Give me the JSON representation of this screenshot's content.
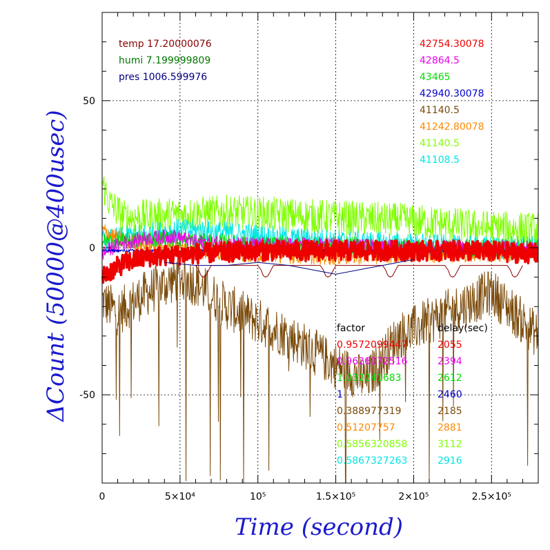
{
  "chart_data": {
    "type": "line",
    "title": "",
    "xlabel": "Time (second)",
    "ylabel": "ΔCount (50000@400usec)",
    "xlim": [
      0,
      280000
    ],
    "ylim": [
      -80,
      80
    ],
    "grid": true,
    "x_ticks": [
      {
        "value": 0,
        "label": "0"
      },
      {
        "value": 50000,
        "label": "5×10⁴"
      },
      {
        "value": 100000,
        "label": "10⁵"
      },
      {
        "value": 150000,
        "label": "1.5×10⁵"
      },
      {
        "value": 200000,
        "label": "2×10⁵"
      },
      {
        "value": 250000,
        "label": "2.5×10⁵"
      }
    ],
    "y_ticks": [
      {
        "value": 50,
        "label": "50"
      },
      {
        "value": 0,
        "label": "0"
      },
      {
        "value": -50,
        "label": "-50"
      }
    ],
    "env_legend": [
      {
        "text": "temp 17.20000076",
        "color": "#8b0000"
      },
      {
        "text": "humi 7.199999809",
        "color": "#007700"
      },
      {
        "text": "pres 1006.599976",
        "color": "#000080"
      }
    ],
    "series": [
      {
        "base": "42754.30078",
        "factor": "0.9572099447",
        "delay": "2055",
        "color": "#ee0000",
        "center": [
          [
            0,
            -10
          ],
          [
            5000,
            -8
          ],
          [
            15000,
            -5
          ],
          [
            30000,
            -3
          ],
          [
            60000,
            -2
          ],
          [
            100000,
            -1
          ],
          [
            150000,
            -1
          ],
          [
            200000,
            -1
          ],
          [
            240000,
            -1
          ],
          [
            280000,
            -2
          ]
        ],
        "spread": 3.5,
        "lw": 3.5
      },
      {
        "base": "42864.5",
        "factor": "0.9626072516",
        "delay": "2394",
        "color": "#ee00ee",
        "center": [
          [
            0,
            -2
          ],
          [
            10000,
            1
          ],
          [
            25000,
            3
          ],
          [
            45000,
            4
          ],
          [
            60000,
            2
          ],
          [
            100000,
            1
          ],
          [
            150000,
            1
          ],
          [
            200000,
            0
          ],
          [
            240000,
            0
          ],
          [
            280000,
            0
          ]
        ],
        "spread": 2.5,
        "lw": 1
      },
      {
        "base": "43465",
        "factor": "1.032241683",
        "delay": "2612",
        "color": "#00dd00",
        "center": [
          [
            0,
            2
          ],
          [
            10000,
            2
          ],
          [
            30000,
            3
          ],
          [
            50000,
            3
          ],
          [
            60000,
            2
          ],
          [
            100000,
            1
          ],
          [
            150000,
            1
          ],
          [
            200000,
            0
          ],
          [
            280000,
            0
          ]
        ],
        "spread": 3,
        "lw": 1
      },
      {
        "base": "42940.30078",
        "factor": "1",
        "delay": "2460",
        "color": "#0000cc",
        "center": [
          [
            0,
            -1
          ],
          [
            280000,
            -1
          ]
        ],
        "spread": 0.5,
        "lw": 1
      },
      {
        "base": "41140.5",
        "factor": "0.388977319",
        "delay": "2185",
        "color": "#7a4a0a",
        "center": [
          [
            0,
            -18
          ],
          [
            10000,
            -22
          ],
          [
            30000,
            -15
          ],
          [
            50000,
            -10
          ],
          [
            60000,
            -12
          ],
          [
            80000,
            -20
          ],
          [
            100000,
            -25
          ],
          [
            120000,
            -30
          ],
          [
            150000,
            -40
          ],
          [
            170000,
            -45
          ],
          [
            190000,
            -30
          ],
          [
            210000,
            -25
          ],
          [
            230000,
            -20
          ],
          [
            250000,
            -15
          ],
          [
            280000,
            -30
          ]
        ],
        "spread": 8,
        "lw": 1
      },
      {
        "base": "41242.80078",
        "factor": "0.51207757",
        "delay": "2881",
        "color": "#ff8800",
        "center": [
          [
            0,
            6
          ],
          [
            10000,
            3
          ],
          [
            30000,
            1
          ],
          [
            60000,
            -1
          ],
          [
            100000,
            -2
          ],
          [
            150000,
            -3
          ],
          [
            200000,
            -2
          ],
          [
            280000,
            -2
          ]
        ],
        "spread": 3,
        "lw": 1
      },
      {
        "base": "41140.5",
        "factor": "0.5856320858",
        "delay": "3112",
        "color": "#7fff00",
        "center": [
          [
            0,
            22
          ],
          [
            5000,
            15
          ],
          [
            15000,
            10
          ],
          [
            40000,
            11
          ],
          [
            80000,
            12
          ],
          [
            120000,
            11
          ],
          [
            160000,
            10
          ],
          [
            200000,
            9
          ],
          [
            240000,
            7
          ],
          [
            280000,
            6
          ]
        ],
        "spread": 6,
        "lw": 1
      },
      {
        "base": "41108.5",
        "factor": "0.5867327263",
        "delay": "2916",
        "color": "#00e5e5",
        "center": [
          [
            0,
            2
          ],
          [
            20000,
            4
          ],
          [
            50000,
            6
          ],
          [
            80000,
            5
          ],
          [
            120000,
            3
          ],
          [
            160000,
            2
          ],
          [
            200000,
            1
          ],
          [
            240000,
            0
          ],
          [
            280000,
            0
          ]
        ],
        "spread": 4,
        "lw": 1
      }
    ],
    "env_curves": [
      {
        "name": "temp",
        "color": "#8b0000",
        "points": [
          [
            60000,
            -6
          ],
          [
            62000,
            -7.5
          ],
          [
            63500,
            -9.5
          ],
          [
            65000,
            -10
          ],
          [
            66500,
            -9.5
          ],
          [
            68000,
            -8
          ],
          [
            70000,
            -6
          ],
          [
            100000,
            -6
          ],
          [
            102000,
            -7.5
          ],
          [
            103500,
            -9.5
          ],
          [
            105000,
            -10
          ],
          [
            106500,
            -9.5
          ],
          [
            108000,
            -8
          ],
          [
            110000,
            -6
          ],
          [
            140000,
            -6
          ],
          [
            142000,
            -7.5
          ],
          [
            143500,
            -9.5
          ],
          [
            145000,
            -10
          ],
          [
            146500,
            -9.5
          ],
          [
            148000,
            -8
          ],
          [
            150000,
            -6
          ],
          [
            180000,
            -6
          ],
          [
            182000,
            -7.5
          ],
          [
            183500,
            -9.5
          ],
          [
            185000,
            -10
          ],
          [
            186500,
            -9.5
          ],
          [
            188000,
            -8
          ],
          [
            190000,
            -6
          ],
          [
            220000,
            -6
          ],
          [
            222000,
            -7.5
          ],
          [
            223500,
            -9.5
          ],
          [
            225000,
            -10
          ],
          [
            226500,
            -9.5
          ],
          [
            228000,
            -8
          ],
          [
            230000,
            -6
          ],
          [
            260000,
            -6
          ],
          [
            262000,
            -7.5
          ],
          [
            263500,
            -9.5
          ],
          [
            265000,
            -10
          ],
          [
            266500,
            -9.5
          ],
          [
            268000,
            -8
          ],
          [
            270000,
            -6
          ]
        ]
      },
      {
        "name": "pres",
        "color": "#000080",
        "points": [
          [
            40000,
            -5
          ],
          [
            60000,
            -6
          ],
          [
            80000,
            -6
          ],
          [
            100000,
            -5
          ],
          [
            120000,
            -6
          ],
          [
            140000,
            -8
          ],
          [
            150000,
            -9
          ],
          [
            160000,
            -8
          ],
          [
            170000,
            -7
          ],
          [
            180000,
            -6
          ],
          [
            190000,
            -5
          ],
          [
            200000,
            -4
          ]
        ]
      }
    ],
    "factor_header": "factor",
    "delay_header": "delay(sec)"
  }
}
